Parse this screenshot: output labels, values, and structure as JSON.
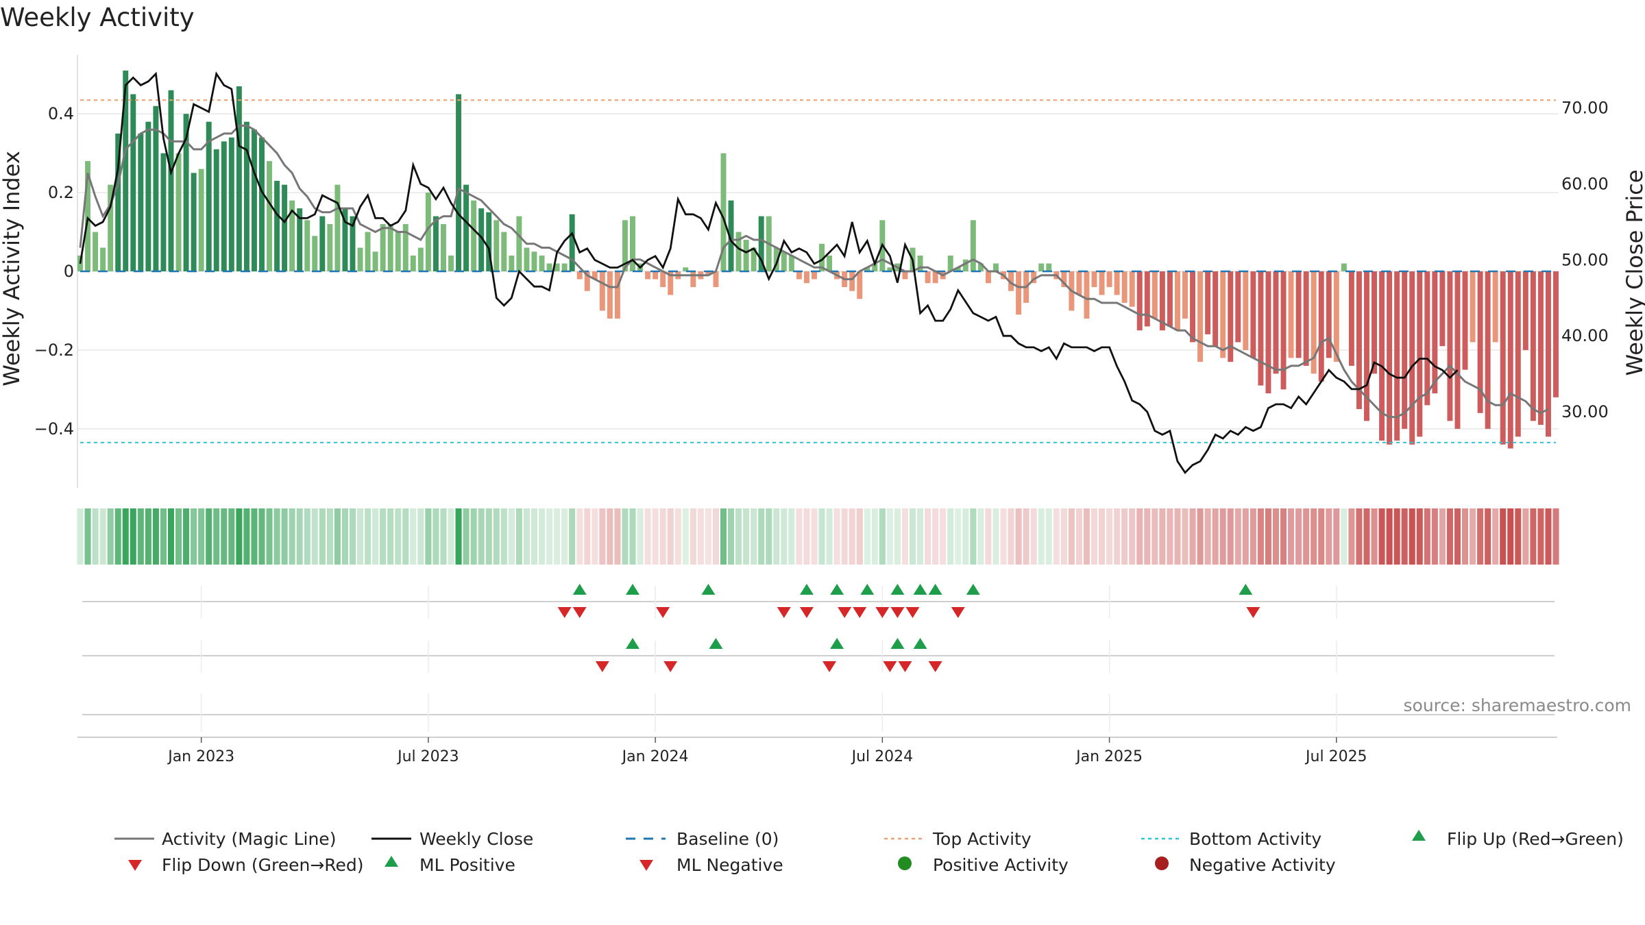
{
  "chart_data": {
    "type": "bar+line",
    "title": "Weekly Activity",
    "ylabel_left": "Weekly Activity Index",
    "ylabel_right": "Weekly Close Price",
    "source": "source: sharemaestro.com",
    "y_left": {
      "min": -0.55,
      "max": 0.55,
      "ticks": [
        0.4,
        0.2,
        0,
        -0.2,
        -0.4
      ],
      "tick_labels": [
        "0.4",
        "0.2",
        "0",
        "−0.2",
        "−0.4"
      ]
    },
    "y_right": {
      "min": 20,
      "max": 77,
      "ticks": [
        70,
        60,
        50,
        40,
        30
      ],
      "tick_labels": [
        "70.00",
        "60.00",
        "50.00",
        "40.00",
        "30.00"
      ]
    },
    "x_ticks": [
      "Jan 2023",
      "Jul 2023",
      "Jan 2024",
      "Jul 2024",
      "Jan 2025",
      "Jul 2025"
    ],
    "x_tick_week_index": [
      16,
      46,
      76,
      106,
      136,
      166
    ],
    "top_activity": 0.435,
    "bottom_activity": -0.435,
    "activity": [
      0.04,
      0.28,
      0.1,
      0.06,
      0.22,
      0.35,
      0.51,
      0.45,
      0.35,
      0.38,
      0.42,
      0.3,
      0.46,
      0.3,
      0.4,
      0.25,
      0.26,
      0.38,
      0.31,
      0.33,
      0.34,
      0.47,
      0.38,
      0.36,
      0.34,
      0.28,
      0.23,
      0.22,
      0.18,
      0.16,
      0.13,
      0.09,
      0.14,
      0.12,
      0.22,
      0.16,
      0.14,
      0.06,
      0.1,
      0.05,
      0.12,
      0.12,
      0.1,
      0.12,
      0.04,
      0.06,
      0.2,
      0.14,
      0.12,
      0.04,
      0.45,
      0.22,
      0.18,
      0.16,
      0.15,
      0.13,
      0.1,
      0.04,
      0.14,
      0.06,
      0.05,
      0.04,
      0.02,
      0.02,
      0.02,
      0.145,
      -0.02,
      -0.05,
      -0.02,
      -0.1,
      -0.12,
      -0.12,
      0.13,
      0.14,
      0.02,
      -0.02,
      -0.02,
      -0.04,
      -0.06,
      -0.02,
      0.01,
      -0.04,
      -0.02,
      -0.01,
      -0.04,
      0.3,
      0.18,
      0.1,
      0.08,
      0.06,
      0.14,
      0.14,
      0.06,
      0.05,
      0.04,
      -0.02,
      -0.03,
      -0.02,
      0.07,
      0.04,
      -0.02,
      -0.04,
      -0.05,
      -0.07,
      0.01,
      0.02,
      0.13,
      0.01,
      0.02,
      -0.02,
      0.06,
      0.04,
      -0.03,
      -0.03,
      -0.02,
      0.04,
      0.01,
      0.03,
      0.13,
      0.02,
      -0.03,
      0.02,
      -0.02,
      -0.05,
      -0.11,
      -0.08,
      -0.03,
      0.02,
      0.02,
      -0.02,
      -0.04,
      -0.1,
      -0.06,
      -0.12,
      -0.04,
      -0.06,
      -0.04,
      -0.06,
      -0.08,
      -0.09,
      -0.15,
      -0.14,
      -0.12,
      -0.15,
      -0.14,
      -0.15,
      -0.12,
      -0.18,
      -0.23,
      -0.16,
      -0.19,
      -0.22,
      -0.23,
      -0.18,
      -0.2,
      -0.22,
      -0.29,
      -0.31,
      -0.26,
      -0.3,
      -0.22,
      -0.22,
      -0.24,
      -0.26,
      -0.28,
      -0.22,
      -0.23,
      0.02,
      -0.24,
      -0.35,
      -0.38,
      -0.26,
      -0.43,
      -0.44,
      -0.43,
      -0.4,
      -0.44,
      -0.42,
      -0.34,
      -0.31,
      -0.19,
      -0.38,
      -0.4,
      -0.25,
      -0.18,
      -0.36,
      -0.4,
      -0.18,
      -0.44,
      -0.45,
      -0.42,
      -0.2,
      -0.38,
      -0.39,
      -0.42,
      -0.32
    ],
    "magic_line": [
      0.06,
      0.25,
      0.19,
      0.14,
      0.17,
      0.22,
      0.31,
      0.33,
      0.35,
      0.36,
      0.36,
      0.35,
      0.33,
      0.33,
      0.33,
      0.31,
      0.31,
      0.33,
      0.34,
      0.35,
      0.35,
      0.37,
      0.37,
      0.36,
      0.34,
      0.32,
      0.3,
      0.27,
      0.25,
      0.21,
      0.19,
      0.16,
      0.15,
      0.15,
      0.16,
      0.16,
      0.16,
      0.12,
      0.11,
      0.1,
      0.11,
      0.11,
      0.1,
      0.1,
      0.09,
      0.08,
      0.11,
      0.13,
      0.14,
      0.14,
      0.21,
      0.2,
      0.19,
      0.18,
      0.16,
      0.14,
      0.12,
      0.11,
      0.09,
      0.07,
      0.07,
      0.06,
      0.06,
      0.05,
      0.04,
      0.03,
      0.01,
      -0.01,
      -0.02,
      -0.03,
      -0.04,
      -0.04,
      0.01,
      0.03,
      0.03,
      0.02,
      0.01,
      0.0,
      -0.01,
      -0.01,
      -0.01,
      -0.01,
      -0.01,
      -0.01,
      0.0,
      0.06,
      0.08,
      0.08,
      0.09,
      0.08,
      0.08,
      0.07,
      0.06,
      0.05,
      0.04,
      0.03,
      0.02,
      0.01,
      0.01,
      0.0,
      -0.01,
      -0.02,
      -0.02,
      0.0,
      0.01,
      0.02,
      0.03,
      0.02,
      0.01,
      0.0,
      0.0,
      0.01,
      0.01,
      0.0,
      -0.01,
      0.0,
      0.01,
      0.02,
      0.03,
      0.02,
      0.0,
      0.0,
      -0.01,
      -0.03,
      -0.04,
      -0.04,
      -0.02,
      -0.01,
      -0.01,
      -0.01,
      -0.03,
      -0.05,
      -0.06,
      -0.07,
      -0.07,
      -0.08,
      -0.08,
      -0.08,
      -0.09,
      -0.1,
      -0.11,
      -0.11,
      -0.12,
      -0.13,
      -0.14,
      -0.15,
      -0.15,
      -0.17,
      -0.18,
      -0.19,
      -0.19,
      -0.2,
      -0.19,
      -0.2,
      -0.21,
      -0.22,
      -0.23,
      -0.24,
      -0.25,
      -0.25,
      -0.24,
      -0.24,
      -0.23,
      -0.22,
      -0.18,
      -0.17,
      -0.21,
      -0.25,
      -0.28,
      -0.3,
      -0.32,
      -0.34,
      -0.36,
      -0.37,
      -0.37,
      -0.36,
      -0.34,
      -0.32,
      -0.31,
      -0.28,
      -0.26,
      -0.24,
      -0.26,
      -0.28,
      -0.29,
      -0.3,
      -0.33,
      -0.34,
      -0.34,
      -0.31,
      -0.32,
      -0.33,
      -0.35,
      -0.36,
      -0.35
    ],
    "weekly_close": [
      49.5,
      55.5,
      54.5,
      55.0,
      57.0,
      62.0,
      73.0,
      74.0,
      73.0,
      73.5,
      74.5,
      66.0,
      61.5,
      64.0,
      66.0,
      70.5,
      70.0,
      69.5,
      74.5,
      73.0,
      72.5,
      65.0,
      64.5,
      61.5,
      59.0,
      57.5,
      56.0,
      55.0,
      56.5,
      55.5,
      55.5,
      56.0,
      58.5,
      58.0,
      57.5,
      55.0,
      54.5,
      57.0,
      58.5,
      55.5,
      55.5,
      54.5,
      55.0,
      56.5,
      62.5,
      60.0,
      59.5,
      58.0,
      59.5,
      57.5,
      56.0,
      55.0,
      54.0,
      53.0,
      51.5,
      45.0,
      44.0,
      45.0,
      48.5,
      47.5,
      46.5,
      46.5,
      46.0,
      51.0,
      52.5,
      53.5,
      51.0,
      51.5,
      50.0,
      49.5,
      49.0,
      49.0,
      49.5,
      50.0,
      49.0,
      50.0,
      50.5,
      49.0,
      51.5,
      58.0,
      56.0,
      56.0,
      55.5,
      54.0,
      57.5,
      55.5,
      52.5,
      51.5,
      51.0,
      51.5,
      50.0,
      47.5,
      49.5,
      52.5,
      51.0,
      51.5,
      51.0,
      49.5,
      50.0,
      51.0,
      52.0,
      50.5,
      55.0,
      51.0,
      52.5,
      49.5,
      52.0,
      50.5,
      47.0,
      52.0,
      50.0,
      43.0,
      44.0,
      42.0,
      42.0,
      43.5,
      46.0,
      44.5,
      43.0,
      42.5,
      42.0,
      42.5,
      40.0,
      40.0,
      39.0,
      38.5,
      38.5,
      38.0,
      38.5,
      37.0,
      39.0,
      38.5,
      38.5,
      38.5,
      38.0,
      38.5,
      38.5,
      36.0,
      34.0,
      31.5,
      31.0,
      30.0,
      27.5,
      27.0,
      27.5,
      23.5,
      22.0,
      23.0,
      23.5,
      25.0,
      27.0,
      26.5,
      27.5,
      27.0,
      28.0,
      27.5,
      28.0,
      30.5,
      31.0,
      31.0,
      30.5,
      32.0,
      31.0,
      32.5,
      34.0,
      35.5,
      34.5,
      34.0,
      33.0,
      33.0,
      33.5,
      36.5,
      36.0,
      35.0,
      34.5,
      34.5,
      36.0,
      37.0,
      37.0,
      36.0,
      35.5,
      34.5,
      35.5
    ],
    "ml_signals": {
      "flip_up_weeks": [
        66,
        73,
        83,
        96,
        100,
        104,
        108,
        111,
        113,
        118,
        154
      ],
      "flip_down_weeks": [
        64,
        66,
        77,
        93,
        96,
        101,
        103,
        106,
        108,
        110,
        116,
        155
      ],
      "ml_positive_weeks": [
        73,
        84,
        100,
        108,
        111
      ],
      "ml_negative_weeks": [
        69,
        78,
        99,
        107,
        109,
        113
      ]
    },
    "legend": [
      "Activity (Magic Line)",
      "Weekly Close",
      "Baseline (0)",
      "Top Activity",
      "Bottom Activity",
      "Flip Up (Red→Green)",
      "Flip Down (Green→Red)",
      "ML Positive",
      "ML Negative",
      "Positive Activity",
      "Negative Activity"
    ]
  },
  "colors": {
    "pos_strong": "#2e8b57",
    "pos_light": "#7dbb7a",
    "neg_strong": "#cd5c5c",
    "neg_light": "#e9967a",
    "magic_line": "#777777",
    "close_line": "#111111",
    "baseline": "#1f77b4",
    "top_line": "#f0a070",
    "bottom_line": "#2ec4d6",
    "marker_up": "#1e9e4a",
    "marker_down": "#d62728",
    "pos_dot": "#228b22",
    "neg_dot": "#a81f1f"
  }
}
